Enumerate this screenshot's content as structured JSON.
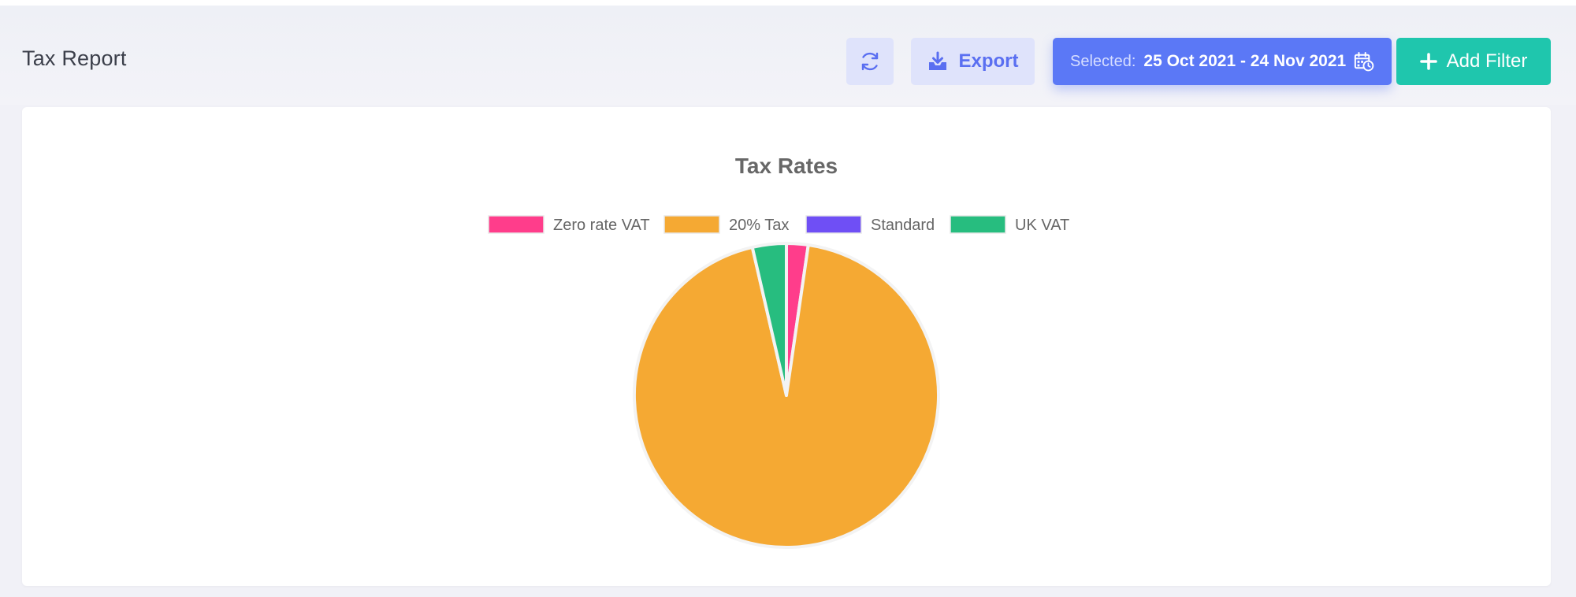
{
  "header": {
    "title": "Tax Report",
    "export_label": "Export",
    "date_prefix": "Selected:",
    "date_range": "25 Oct 2021 - 24 Nov 2021",
    "add_filter_label": "Add Filter"
  },
  "icons": {
    "refresh": "refresh-icon",
    "export": "download-icon",
    "calendar": "calendar-clock-icon",
    "add": "plus-icon"
  },
  "colors": {
    "primary": "#5b78f6",
    "accent": "#1fc6ad",
    "soft_button": "#dfe3fb"
  },
  "chart_data": {
    "type": "pie",
    "title": "Tax Rates",
    "legend_position": "top",
    "categories": [
      "Zero rate VAT",
      "20% Tax",
      "Standard",
      "UK VAT"
    ],
    "values": [
      2.3,
      94.1,
      0,
      3.6
    ],
    "colors": [
      "#ff3d8b",
      "#f5a933",
      "#6f4ff5",
      "#27bd7f"
    ]
  }
}
